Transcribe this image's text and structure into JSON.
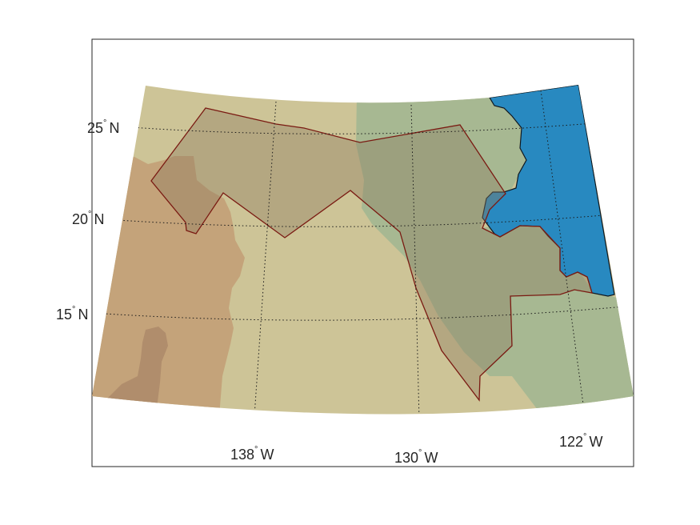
{
  "colors": {
    "background": "#ffffff",
    "frame": "#262626",
    "terrain_tan": "#cdc497",
    "terrain_brown": "#c4a37a",
    "terrain_dark_brown": "#b08d6c",
    "terrain_green": "#a7b892",
    "ocean": "#2889c0",
    "region_fill": "#8c7a5e",
    "region_outline": "#7a1a12",
    "graticule": "#1a1a1a"
  },
  "map": {
    "projection": "conic",
    "graticule_style": "dotted",
    "latitude_labels": [
      {
        "value": "25",
        "hemisphere": "N"
      },
      {
        "value": "20",
        "hemisphere": "N"
      },
      {
        "value": "15",
        "hemisphere": "N"
      }
    ],
    "longitude_labels": [
      {
        "value": "138",
        "hemisphere": "W"
      },
      {
        "value": "130",
        "hemisphere": "W"
      },
      {
        "value": "122",
        "hemisphere": "W"
      }
    ],
    "degree_symbol": "°",
    "layers": [
      "terrain-relief",
      "ocean",
      "highlighted-region"
    ]
  }
}
